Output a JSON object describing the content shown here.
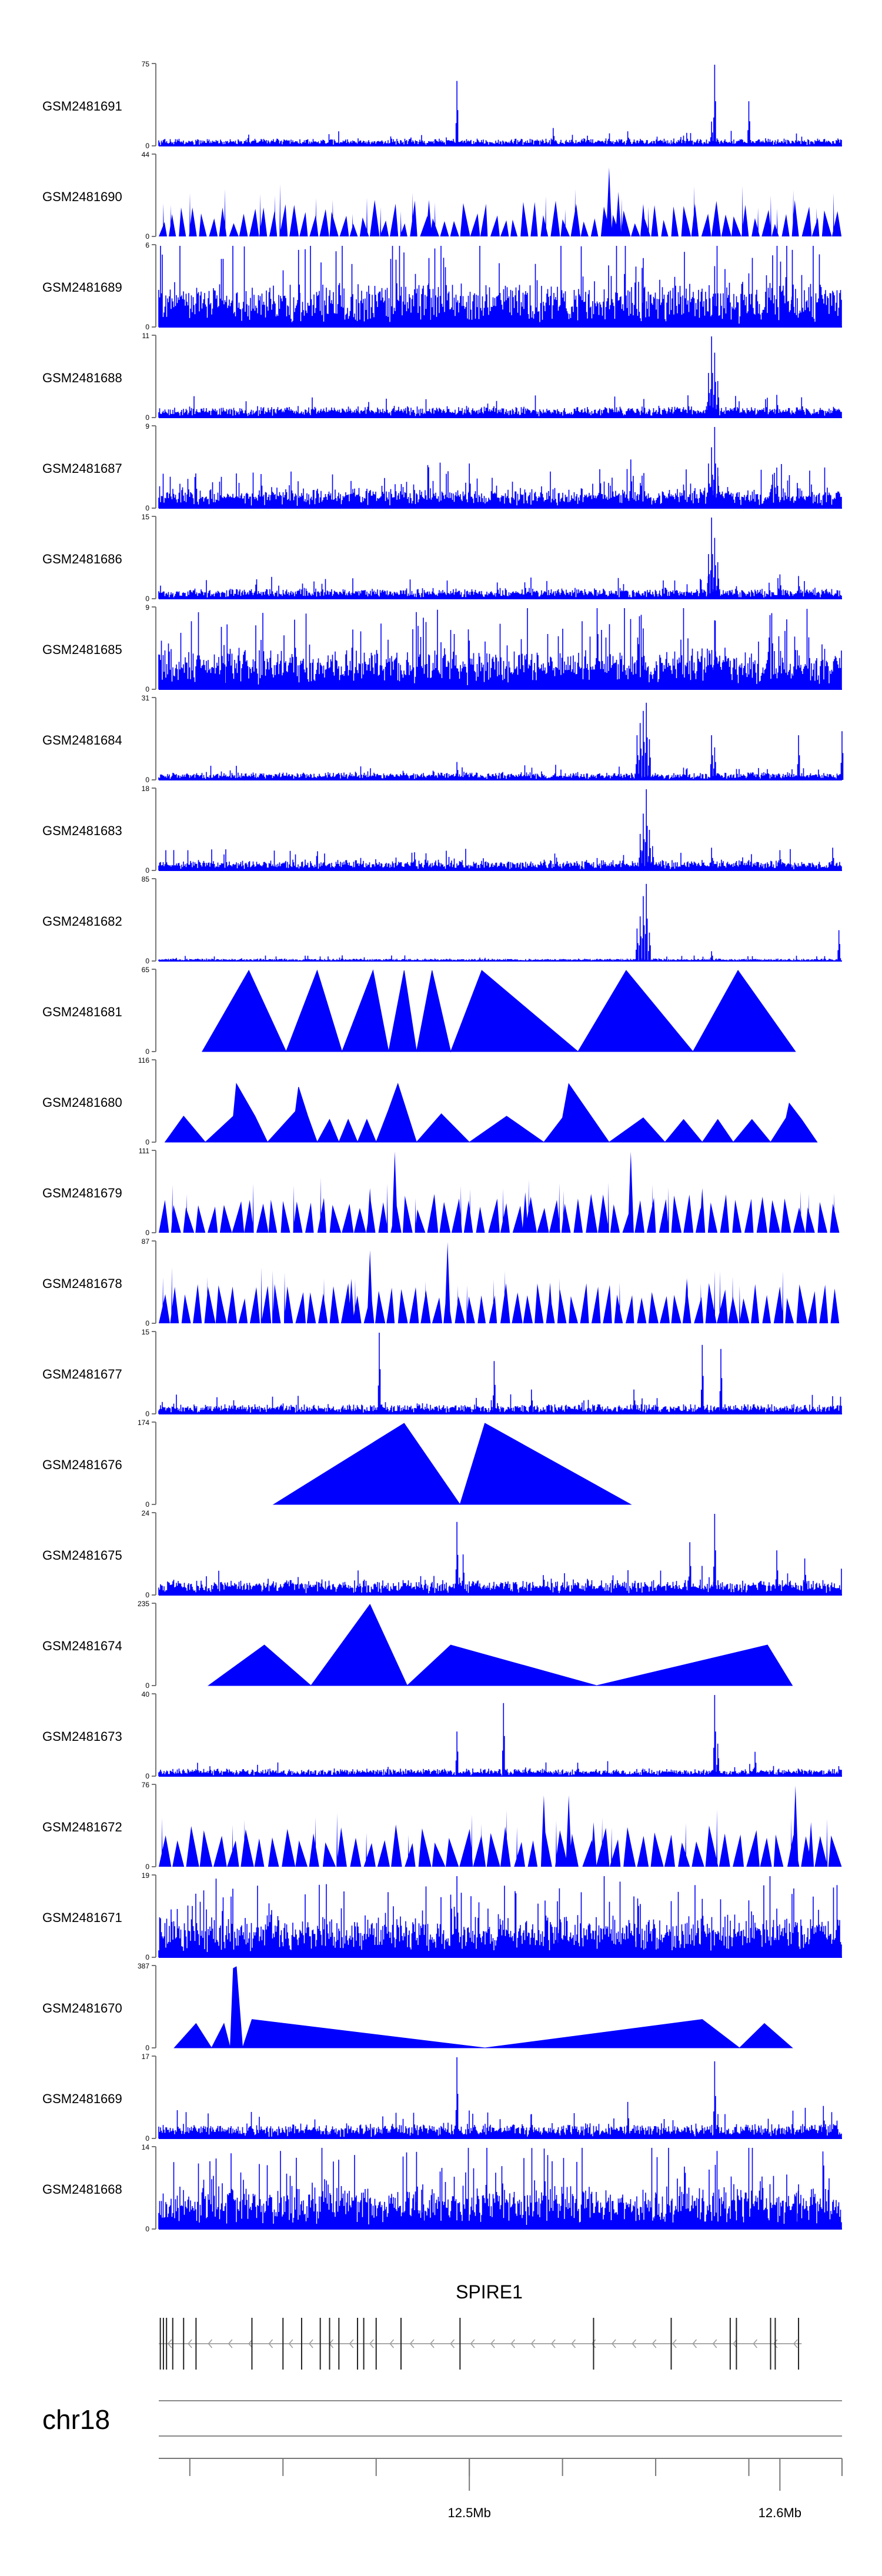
{
  "colors": {
    "signal": "#0000ff",
    "axis": "#777777",
    "text": "#000000",
    "gene": "#222222",
    "intron": "#aaaaaa"
  },
  "chart_data": {
    "type": "area",
    "title": "",
    "chromosome": "chr18",
    "xlim": [
      12.4,
      12.62
    ],
    "x_unit": "Mb",
    "x_ticks": [
      {
        "value": 12.5,
        "label": "12.5Mb"
      },
      {
        "value": 12.6,
        "label": "12.6Mb"
      }
    ],
    "x_minor_ticks": [
      12.41,
      12.42,
      12.43,
      12.44,
      12.45,
      12.46,
      12.47,
      12.48,
      12.49,
      12.5,
      12.51,
      12.52,
      12.53,
      12.54,
      12.55,
      12.56,
      12.57,
      12.58,
      12.59,
      12.6,
      12.61
    ],
    "gene": {
      "name": "SPIRE1",
      "strand": "-",
      "start": 12.4,
      "end": 12.607,
      "exons": [
        12.4005,
        12.4015,
        12.4025,
        12.4045,
        12.408,
        12.412,
        12.43,
        12.44,
        12.446,
        12.452,
        12.455,
        12.458,
        12.464,
        12.466,
        12.47,
        12.478,
        12.497,
        12.54,
        12.565,
        12.586,
        12.597,
        12.584,
        12.5985,
        12.606
      ]
    },
    "series": [
      {
        "name": "GSM2481691",
        "ymax": 75,
        "style": "noise",
        "base": 0.04,
        "var": 0.05,
        "seed": 11,
        "peaks": [
          [
            12.496,
            0.8
          ],
          [
            12.527,
            0.22
          ],
          [
            12.551,
            0.18
          ],
          [
            12.59,
            0.55
          ],
          [
            12.57,
            0.16
          ],
          [
            12.579,
            1.0
          ],
          [
            12.578,
            0.3
          ]
        ]
      },
      {
        "name": "GSM2481690",
        "ymax": 44,
        "style": "tri",
        "base": 0.3,
        "var": 0.15,
        "seed": 12,
        "n": 68,
        "peaks": [
          [
            12.545,
            0.85
          ],
          [
            12.548,
            0.55
          ],
          [
            12.556,
            0.4
          ],
          [
            12.487,
            0.45
          ]
        ]
      },
      {
        "name": "GSM2481689",
        "ymax": 6,
        "style": "dense",
        "base": 0.18,
        "var": 0.35,
        "seed": 13,
        "peaks": [
          [
            12.445,
            0.95
          ],
          [
            12.487,
            0.85
          ],
          [
            12.556,
            0.85
          ],
          [
            12.579,
            0.75
          ],
          [
            12.604,
            0.95
          ]
        ]
      },
      {
        "name": "GSM2481688",
        "ymax": 11,
        "style": "noise",
        "base": 0.06,
        "var": 0.08,
        "seed": 14,
        "peaks": [
          [
            12.578,
            1.0
          ],
          [
            12.579,
            0.8
          ],
          [
            12.577,
            0.55
          ],
          [
            12.58,
            0.45
          ],
          [
            12.599,
            0.28
          ],
          [
            12.607,
            0.25
          ]
        ]
      },
      {
        "name": "GSM2481687",
        "ymax": 9,
        "style": "dense",
        "base": 0.12,
        "var": 0.12,
        "seed": 15,
        "peaks": [
          [
            12.579,
            1.0
          ],
          [
            12.578,
            0.75
          ],
          [
            12.577,
            0.55
          ],
          [
            12.58,
            0.5
          ],
          [
            12.5,
            0.55
          ],
          [
            12.552,
            0.6
          ],
          [
            12.599,
            0.5
          ]
        ]
      },
      {
        "name": "GSM2481686",
        "ymax": 15,
        "style": "noise",
        "base": 0.05,
        "var": 0.08,
        "seed": 16,
        "peaks": [
          [
            12.578,
            1.0
          ],
          [
            12.579,
            0.75
          ],
          [
            12.577,
            0.55
          ],
          [
            12.58,
            0.45
          ],
          [
            12.509,
            0.2
          ],
          [
            12.6,
            0.3
          ],
          [
            12.606,
            0.28
          ]
        ]
      },
      {
        "name": "GSM2481685",
        "ymax": 9,
        "style": "dense",
        "base": 0.2,
        "var": 0.28,
        "seed": 17,
        "peaks": [
          [
            12.422,
            0.8
          ],
          [
            12.556,
            0.75
          ],
          [
            12.579,
            0.85
          ],
          [
            12.5,
            0.6
          ]
        ]
      },
      {
        "name": "GSM2481684",
        "ymax": 31,
        "style": "noise",
        "base": 0.04,
        "var": 0.05,
        "seed": 18,
        "peaks": [
          [
            12.554,
            0.55
          ],
          [
            12.556,
            0.85
          ],
          [
            12.557,
            0.95
          ],
          [
            12.555,
            0.7
          ],
          [
            12.558,
            0.5
          ],
          [
            12.578,
            0.55
          ],
          [
            12.579,
            0.4
          ],
          [
            12.496,
            0.22
          ],
          [
            12.606,
            0.55
          ],
          [
            12.62,
            0.6
          ]
        ]
      },
      {
        "name": "GSM2481683",
        "ymax": 18,
        "style": "noise",
        "base": 0.05,
        "var": 0.08,
        "seed": 19,
        "peaks": [
          [
            12.556,
            0.7
          ],
          [
            12.557,
            1.0
          ],
          [
            12.555,
            0.45
          ],
          [
            12.558,
            0.5
          ],
          [
            12.559,
            0.3
          ],
          [
            12.578,
            0.28
          ],
          [
            12.6,
            0.25
          ],
          [
            12.617,
            0.28
          ]
        ]
      },
      {
        "name": "GSM2481682",
        "ymax": 85,
        "style": "noise",
        "base": 0.01,
        "var": 0.02,
        "seed": 20,
        "peaks": [
          [
            12.554,
            0.4
          ],
          [
            12.556,
            0.8
          ],
          [
            12.557,
            0.95
          ],
          [
            12.555,
            0.55
          ],
          [
            12.558,
            0.35
          ],
          [
            12.578,
            0.12
          ],
          [
            12.619,
            0.38
          ]
        ]
      },
      {
        "name": "GSM2481681",
        "ymax": 65,
        "style": "peaks",
        "points": [
          [
            12.414,
            0
          ],
          [
            12.429,
            1
          ],
          [
            12.441,
            0
          ],
          [
            12.451,
            1
          ],
          [
            12.459,
            0
          ],
          [
            12.469,
            1
          ],
          [
            12.474,
            0
          ],
          [
            12.479,
            1
          ],
          [
            12.483,
            0
          ],
          [
            12.488,
            1
          ],
          [
            12.494,
            0
          ],
          [
            12.504,
            1
          ],
          [
            12.535,
            0
          ],
          [
            12.5505,
            1
          ],
          [
            12.572,
            0
          ],
          [
            12.5865,
            1
          ],
          [
            12.605,
            0
          ]
        ]
      },
      {
        "name": "GSM2481680",
        "ymax": 116,
        "style": "peaks",
        "points": [
          [
            12.402,
            0
          ],
          [
            12.408,
            0.32
          ],
          [
            12.415,
            0
          ],
          [
            12.424,
            0.32
          ],
          [
            12.425,
            0.72
          ],
          [
            12.431,
            0.32
          ],
          [
            12.435,
            0
          ],
          [
            12.444,
            0.38
          ],
          [
            12.445,
            0.68
          ],
          [
            12.448,
            0.32
          ],
          [
            12.451,
            0
          ],
          [
            12.455,
            0.28
          ],
          [
            12.458,
            0
          ],
          [
            12.461,
            0.28
          ],
          [
            12.464,
            0
          ],
          [
            12.467,
            0.28
          ],
          [
            12.47,
            0
          ],
          [
            12.474,
            0.4
          ],
          [
            12.477,
            0.72
          ],
          [
            12.483,
            0
          ],
          [
            12.491,
            0.35
          ],
          [
            12.5,
            0
          ],
          [
            12.512,
            0.32
          ],
          [
            12.524,
            0
          ],
          [
            12.53,
            0.3
          ],
          [
            12.532,
            0.72
          ],
          [
            12.545,
            0
          ],
          [
            12.556,
            0.3
          ],
          [
            12.563,
            0
          ],
          [
            12.569,
            0.28
          ],
          [
            12.575,
            0
          ],
          [
            12.58,
            0.28
          ],
          [
            12.585,
            0
          ],
          [
            12.591,
            0.28
          ],
          [
            12.597,
            0
          ],
          [
            12.602,
            0.3
          ],
          [
            12.603,
            0.48
          ],
          [
            12.607,
            0.28
          ],
          [
            12.612,
            0
          ]
        ]
      },
      {
        "name": "GSM2481679",
        "ymax": 111,
        "style": "tri",
        "base": 0.38,
        "var": 0.1,
        "seed": 21,
        "n": 56,
        "peaks": [
          [
            12.476,
            1.0
          ],
          [
            12.552,
            1.0
          ],
          [
            12.468,
            0.55
          ],
          [
            12.518,
            0.5
          ],
          [
            12.575,
            0.55
          ]
        ]
      },
      {
        "name": "GSM2481678",
        "ymax": 87,
        "style": "tri",
        "base": 0.4,
        "var": 0.1,
        "seed": 22,
        "n": 60,
        "peaks": [
          [
            12.468,
            0.9
          ],
          [
            12.493,
            1.0
          ],
          [
            12.462,
            0.55
          ],
          [
            12.57,
            0.55
          ],
          [
            12.526,
            0.5
          ]
        ]
      },
      {
        "name": "GSM2481677",
        "ymax": 15,
        "style": "noise",
        "base": 0.05,
        "var": 0.07,
        "seed": 23,
        "peaks": [
          [
            12.471,
            1.0
          ],
          [
            12.508,
            0.65
          ],
          [
            12.575,
            0.85
          ],
          [
            12.581,
            0.8
          ],
          [
            12.52,
            0.3
          ],
          [
            12.553,
            0.3
          ]
        ]
      },
      {
        "name": "GSM2481676",
        "ymax": 174,
        "style": "peaks",
        "points": [
          [
            12.437,
            0
          ],
          [
            12.479,
            1
          ],
          [
            12.497,
            0
          ],
          [
            12.505,
            1
          ],
          [
            12.552,
            0
          ]
        ]
      },
      {
        "name": "GSM2481675",
        "ymax": 24,
        "style": "noise",
        "base": 0.08,
        "var": 0.1,
        "seed": 24,
        "peaks": [
          [
            12.496,
            0.9
          ],
          [
            12.498,
            0.5
          ],
          [
            12.579,
            1.0
          ],
          [
            12.571,
            0.65
          ],
          [
            12.599,
            0.55
          ],
          [
            12.608,
            0.45
          ]
        ]
      },
      {
        "name": "GSM2481674",
        "ymax": 235,
        "style": "peaks",
        "points": [
          [
            12.416,
            0
          ],
          [
            12.434,
            0.5
          ],
          [
            12.449,
            0
          ],
          [
            12.468,
            1
          ],
          [
            12.48,
            0
          ],
          [
            12.494,
            0.5
          ],
          [
            12.541,
            0
          ],
          [
            12.596,
            0.5
          ],
          [
            12.604,
            0
          ]
        ]
      },
      {
        "name": "GSM2481673",
        "ymax": 40,
        "style": "noise",
        "base": 0.04,
        "var": 0.05,
        "seed": 25,
        "peaks": [
          [
            12.496,
            0.55
          ],
          [
            12.511,
            0.9
          ],
          [
            12.579,
            1.0
          ],
          [
            12.58,
            0.4
          ],
          [
            12.592,
            0.3
          ]
        ]
      },
      {
        "name": "GSM2481672",
        "ymax": 76,
        "style": "tri",
        "base": 0.4,
        "var": 0.12,
        "seed": 26,
        "n": 50,
        "peaks": [
          [
            12.524,
            0.88
          ],
          [
            12.532,
            0.88
          ],
          [
            12.605,
            1.0
          ],
          [
            12.61,
            0.55
          ],
          [
            12.54,
            0.55
          ]
        ]
      },
      {
        "name": "GSM2481671",
        "ymax": 19,
        "style": "dense",
        "base": 0.22,
        "var": 0.28,
        "seed": 27,
        "peaks": [
          [
            12.496,
            1.0
          ],
          [
            12.529,
            0.85
          ],
          [
            12.553,
            0.75
          ],
          [
            12.575,
            0.72
          ],
          [
            12.506,
            0.6
          ],
          [
            12.599,
            0.6
          ]
        ]
      },
      {
        "name": "GSM2481670",
        "ymax": 387,
        "style": "peaks",
        "points": [
          [
            12.405,
            0
          ],
          [
            12.412,
            0.3
          ],
          [
            12.417,
            0
          ],
          [
            12.421,
            0.3
          ],
          [
            12.423,
            0
          ],
          [
            12.424,
            0.98
          ],
          [
            12.425,
            1.0
          ],
          [
            12.427,
            0
          ],
          [
            12.43,
            0.35
          ],
          [
            12.505,
            0
          ],
          [
            12.575,
            0.35
          ],
          [
            12.587,
            0
          ],
          [
            12.595,
            0.3
          ],
          [
            12.604,
            0
          ]
        ]
      },
      {
        "name": "GSM2481669",
        "ymax": 17,
        "style": "noise",
        "base": 0.08,
        "var": 0.1,
        "seed": 28,
        "peaks": [
          [
            12.496,
            1.0
          ],
          [
            12.579,
            0.95
          ],
          [
            12.551,
            0.45
          ],
          [
            12.614,
            0.4
          ],
          [
            12.52,
            0.3
          ]
        ]
      },
      {
        "name": "GSM2481668",
        "ymax": 14,
        "style": "dense",
        "base": 0.2,
        "var": 0.3,
        "seed": 29,
        "peaks": [
          [
            12.483,
            0.95
          ],
          [
            12.485,
            0.55
          ],
          [
            12.521,
            0.6
          ],
          [
            12.606,
            0.55
          ],
          [
            12.56,
            0.45
          ]
        ]
      }
    ]
  }
}
